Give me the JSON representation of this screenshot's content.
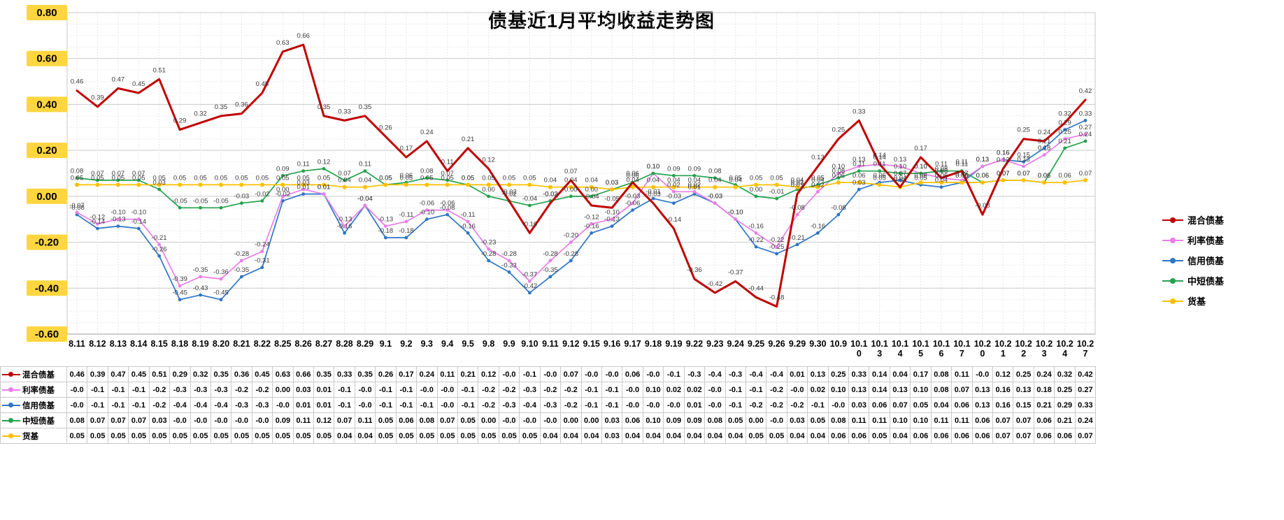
{
  "colors": {
    "tick_background": "#FFD640",
    "grid_major": "#C9C9C9",
    "grid_minor": "#ECECEC",
    "point_label": "#3A3A3A"
  },
  "chart_data": {
    "type": "line",
    "title": "债基近1月平均收益走势图",
    "xlabel": "",
    "ylabel": "",
    "ylim": [
      -0.6,
      0.8
    ],
    "ytick_step": 0.2,
    "yticks": [
      "0.80",
      "0.60",
      "0.40",
      "0.20",
      "0.00",
      "-0.20",
      "-0.40",
      "-0.60"
    ],
    "grid": true,
    "legend_position": "right",
    "point_labels": true,
    "data_table": true,
    "categories": [
      "8.11",
      "8.12",
      "8.13",
      "8.14",
      "8.15",
      "8.18",
      "8.19",
      "8.20",
      "8.21",
      "8.22",
      "8.25",
      "8.26",
      "8.27",
      "8.28",
      "8.29",
      "9.1",
      "9.2",
      "9.3",
      "9.4",
      "9.5",
      "9.8",
      "9.9",
      "9.10",
      "9.11",
      "9.12",
      "9.15",
      "9.16",
      "9.17",
      "9.18",
      "9.19",
      "9.22",
      "9.23",
      "9.24",
      "9.25",
      "9.26",
      "9.29",
      "9.30",
      "10.9",
      "10.10",
      "10.13",
      "10.14",
      "10.15",
      "10.16",
      "10.17",
      "10.20",
      "10.21",
      "10.22",
      "10.23",
      "10.24",
      "10.27"
    ],
    "series": [
      {
        "name": "混合债基",
        "color": "#C00000",
        "values": [
          0.46,
          0.39,
          0.47,
          0.45,
          0.51,
          0.29,
          0.32,
          0.35,
          0.36,
          0.45,
          0.63,
          0.66,
          0.35,
          0.33,
          0.35,
          0.26,
          0.17,
          0.24,
          0.11,
          0.21,
          0.12,
          -0.02,
          -0.16,
          -0.03,
          0.07,
          -0.04,
          -0.05,
          0.06,
          -0.03,
          -0.14,
          -0.36,
          -0.42,
          -0.37,
          -0.44,
          -0.48,
          0.01,
          0.13,
          0.25,
          0.33,
          0.14,
          0.04,
          0.17,
          0.08,
          0.11,
          -0.08,
          0.12,
          0.25,
          0.24,
          0.32,
          0.42
        ]
      },
      {
        "name": "利率债基",
        "color": "#EA7DEA",
        "values": [
          -0.07,
          -0.12,
          -0.1,
          -0.1,
          -0.21,
          -0.39,
          -0.35,
          -0.36,
          -0.28,
          -0.24,
          0.0,
          0.03,
          0.01,
          -0.13,
          -0.04,
          -0.13,
          -0.11,
          -0.06,
          -0.06,
          -0.11,
          -0.23,
          -0.28,
          -0.37,
          -0.28,
          -0.2,
          -0.12,
          -0.1,
          -0.03,
          0.1,
          0.02,
          0.02,
          -0.03,
          -0.1,
          -0.16,
          -0.22,
          -0.08,
          0.02,
          0.1,
          0.13,
          0.14,
          0.13,
          0.1,
          0.08,
          0.07,
          0.13,
          0.16,
          0.13,
          0.18,
          0.25,
          0.27
        ]
      },
      {
        "name": "信用债基",
        "color": "#2E75C6",
        "values": [
          -0.08,
          -0.14,
          -0.13,
          -0.14,
          -0.26,
          -0.45,
          -0.43,
          -0.45,
          -0.35,
          -0.31,
          -0.02,
          0.01,
          0.01,
          -0.16,
          -0.04,
          -0.18,
          -0.18,
          -0.1,
          -0.08,
          -0.16,
          -0.28,
          -0.33,
          -0.42,
          -0.35,
          -0.28,
          -0.16,
          -0.13,
          -0.06,
          -0.01,
          -0.03,
          0.01,
          -0.03,
          -0.1,
          -0.22,
          -0.25,
          -0.21,
          -0.16,
          -0.08,
          0.03,
          0.06,
          0.07,
          0.05,
          0.04,
          0.06,
          0.13,
          0.16,
          0.15,
          0.21,
          0.29,
          0.33
        ]
      },
      {
        "name": "中短债基",
        "color": "#23A24D",
        "values": [
          0.08,
          0.07,
          0.07,
          0.07,
          0.03,
          -0.05,
          -0.05,
          -0.05,
          -0.03,
          -0.02,
          0.09,
          0.11,
          0.12,
          0.07,
          0.11,
          0.05,
          0.06,
          0.08,
          0.07,
          0.05,
          0.0,
          -0.02,
          -0.04,
          -0.02,
          0.0,
          0.0,
          0.03,
          0.06,
          0.1,
          0.09,
          0.09,
          0.08,
          0.05,
          0.0,
          -0.01,
          0.03,
          0.05,
          0.08,
          0.11,
          0.11,
          0.1,
          0.1,
          0.11,
          0.11,
          0.06,
          0.07,
          0.07,
          0.06,
          0.21,
          0.24
        ]
      },
      {
        "name": "货基",
        "color": "#FFC000",
        "values": [
          0.05,
          0.05,
          0.05,
          0.05,
          0.05,
          0.05,
          0.05,
          0.05,
          0.05,
          0.05,
          0.05,
          0.05,
          0.05,
          0.04,
          0.04,
          0.05,
          0.05,
          0.05,
          0.05,
          0.05,
          0.05,
          0.05,
          0.05,
          0.04,
          0.04,
          0.04,
          0.03,
          0.04,
          0.04,
          0.04,
          0.04,
          0.04,
          0.04,
          0.05,
          0.05,
          0.04,
          0.04,
          0.06,
          0.06,
          0.05,
          0.04,
          0.06,
          0.06,
          0.06,
          0.06,
          0.07,
          0.07,
          0.06,
          0.06,
          0.07
        ]
      }
    ]
  }
}
